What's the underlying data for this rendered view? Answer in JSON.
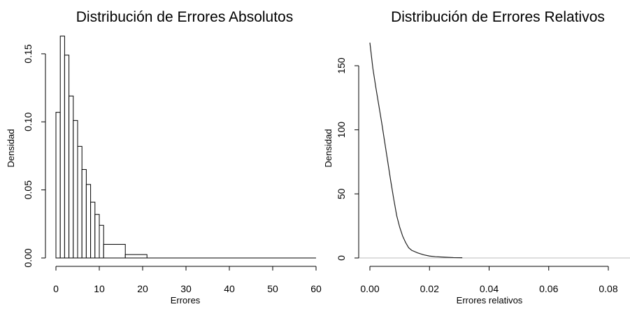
{
  "chart_data": [
    {
      "type": "bar",
      "title": "Distribución de Errores Absolutos",
      "xlabel": "Errores",
      "ylabel": "Densidad",
      "xlim": [
        0,
        60
      ],
      "ylim": [
        0,
        0.17
      ],
      "xticks": [
        "0",
        "10",
        "20",
        "30",
        "40",
        "50",
        "60"
      ],
      "yticks": [
        "0.00",
        "0.05",
        "0.10",
        "0.15"
      ],
      "grid": false,
      "bins": [
        {
          "x0": 0,
          "x1": 1,
          "density": 0.107
        },
        {
          "x0": 1,
          "x1": 2,
          "density": 0.163
        },
        {
          "x0": 2,
          "x1": 3,
          "density": 0.149
        },
        {
          "x0": 3,
          "x1": 4,
          "density": 0.119
        },
        {
          "x0": 4,
          "x1": 5,
          "density": 0.101
        },
        {
          "x0": 5,
          "x1": 6,
          "density": 0.082
        },
        {
          "x0": 6,
          "x1": 7,
          "density": 0.065
        },
        {
          "x0": 7,
          "x1": 8,
          "density": 0.054
        },
        {
          "x0": 8,
          "x1": 9,
          "density": 0.041
        },
        {
          "x0": 9,
          "x1": 10,
          "density": 0.032
        },
        {
          "x0": 10,
          "x1": 11,
          "density": 0.024
        },
        {
          "x0": 11,
          "x1": 16,
          "density": 0.01
        },
        {
          "x0": 16,
          "x1": 21,
          "density": 0.0025
        },
        {
          "x0": 21,
          "x1": 60,
          "density": 0.0
        }
      ]
    },
    {
      "type": "line",
      "title": "Distribución de Errores Relativos",
      "xlabel": "Errores relativos",
      "ylabel": "Densidad",
      "xlim": [
        0,
        0.09
      ],
      "ylim": [
        0,
        170
      ],
      "xticks": [
        "0.00",
        "0.02",
        "0.04",
        "0.06",
        "0.08"
      ],
      "yticks": [
        "0",
        "50",
        "100",
        "150"
      ],
      "grid": false,
      "baseline_color": "#bbbbbb",
      "line_color": "#222222",
      "series": [
        {
          "x": [
            0.0,
            0.001,
            0.002,
            0.003,
            0.004,
            0.005,
            0.006,
            0.007,
            0.008,
            0.009,
            0.01,
            0.011,
            0.012,
            0.013,
            0.014,
            0.016,
            0.018,
            0.02,
            0.022,
            0.025,
            0.028,
            0.031
          ],
          "y": [
            168,
            148,
            133,
            119,
            105,
            90,
            75,
            60,
            46,
            33,
            24,
            17,
            12,
            8,
            6,
            4,
            2.5,
            1.5,
            1.0,
            0.6,
            0.3,
            0.2
          ]
        }
      ]
    }
  ]
}
